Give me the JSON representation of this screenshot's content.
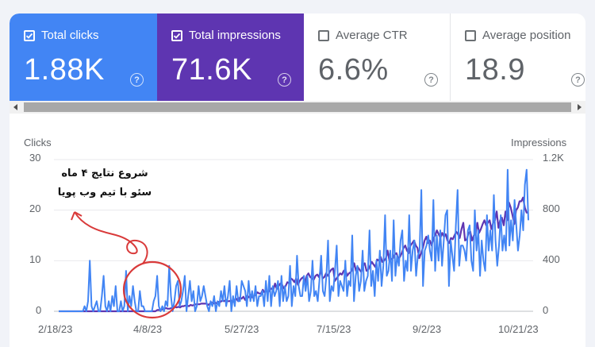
{
  "metrics": [
    {
      "label": "Total clicks",
      "value": "1.88K",
      "checked": true,
      "color": "#4285f4",
      "help": "?"
    },
    {
      "label": "Total impressions",
      "value": "71.6K",
      "checked": true,
      "color": "#5e35b1",
      "help": "?"
    },
    {
      "label": "Average CTR",
      "value": "6.6%",
      "checked": false,
      "help": "?"
    },
    {
      "label": "Average position",
      "value": "18.9",
      "checked": false,
      "help": "?"
    }
  ],
  "scrollbar": {
    "left_icon": "scroll-left-icon",
    "right_icon": "scroll-right-icon"
  },
  "annotation": {
    "line1": "شروع نتایج ۴ ماه",
    "line2": "سئو با تیم وب پویا",
    "arrow_color": "#d93a3a",
    "circle_color": "#d93a3a"
  },
  "chart_data": {
    "type": "line",
    "left_axis": {
      "label": "Clicks",
      "ticks": [
        "30",
        "20",
        "10",
        "0"
      ],
      "ylim": [
        0,
        30
      ]
    },
    "right_axis": {
      "label": "Impressions",
      "ticks": [
        "1.2K",
        "800",
        "400",
        "0"
      ],
      "ylim": [
        0,
        1200
      ]
    },
    "x_ticks": [
      "2/18/23",
      "4/8/23",
      "5/27/23",
      "7/15/23",
      "9/2/23",
      "10/21/23"
    ],
    "series": [
      {
        "name": "Clicks",
        "axis": "left",
        "color": "#4285f4",
        "values": [
          0,
          0,
          0,
          0,
          0,
          0,
          0,
          0,
          0,
          0,
          0,
          0,
          0,
          0,
          0,
          1,
          0,
          2,
          10,
          1,
          0,
          1,
          2,
          0,
          0,
          3,
          7,
          1,
          0,
          2,
          0,
          3,
          1,
          5,
          0,
          0,
          2,
          0,
          1,
          8,
          0,
          3,
          1,
          5,
          2,
          0,
          0,
          4,
          1,
          1,
          0,
          0,
          0,
          0,
          0,
          2,
          3,
          7,
          1,
          0,
          1,
          0,
          2,
          1,
          9,
          3,
          0,
          2,
          5,
          6,
          1,
          2,
          4,
          7,
          0,
          3,
          6,
          2,
          4,
          0,
          1,
          5,
          2,
          3,
          5,
          3,
          1,
          0,
          2,
          1,
          3,
          0,
          2,
          1,
          4,
          2,
          5,
          1,
          3,
          6,
          0,
          3,
          1,
          5,
          2,
          2,
          6,
          5,
          4,
          1,
          6,
          2,
          4,
          2,
          5,
          1,
          3,
          3,
          4,
          1,
          6,
          2,
          7,
          1,
          5,
          3,
          4,
          6,
          1,
          7,
          2,
          5,
          2,
          3,
          9,
          1,
          5,
          3,
          11,
          5,
          3,
          3,
          7,
          4,
          7,
          2,
          4,
          10,
          3,
          4,
          2,
          6,
          11,
          4,
          3,
          7,
          14,
          2,
          5,
          4,
          8,
          13,
          3,
          6,
          5,
          4,
          10,
          3,
          6,
          5,
          15,
          2,
          7,
          9,
          4,
          6,
          12,
          4,
          6,
          7,
          16,
          5,
          8,
          3,
          10,
          6,
          12,
          5,
          9,
          19,
          7,
          8,
          12,
          6,
          18,
          7,
          11,
          9,
          14,
          16,
          6,
          10,
          8,
          19,
          8,
          12,
          14,
          7,
          11,
          12,
          24,
          5,
          12,
          13,
          15,
          12,
          10,
          22,
          8,
          15,
          10,
          16,
          9,
          14,
          19,
          20,
          5,
          14,
          11,
          8,
          17,
          24,
          9,
          13,
          13,
          12,
          10,
          16,
          17,
          10,
          8,
          20,
          12,
          16,
          7,
          14,
          10,
          8,
          19,
          12,
          16,
          12,
          23,
          14,
          9,
          13,
          19,
          12,
          15,
          12,
          28,
          13,
          18,
          14,
          22,
          17,
          12,
          15,
          20,
          16,
          25,
          28,
          18
        ]
      },
      {
        "name": "Impressions",
        "axis": "right",
        "color": "#5e35b1",
        "values": [
          0,
          0,
          0,
          0,
          0,
          0,
          0,
          0,
          0,
          0,
          0,
          0,
          0,
          0,
          0,
          0,
          0,
          0,
          0,
          0,
          0,
          0,
          0,
          0,
          0,
          0,
          0,
          0,
          0,
          0,
          0,
          0,
          0,
          0,
          0,
          0,
          0,
          0,
          0,
          0,
          0,
          0,
          0,
          0,
          0,
          0,
          0,
          0,
          0,
          0,
          0,
          0,
          0,
          0,
          0,
          0,
          10,
          10,
          10,
          15,
          20,
          25,
          20,
          20,
          25,
          30,
          35,
          30,
          35,
          30,
          40,
          40,
          45,
          45,
          40,
          50,
          45,
          50,
          55,
          55,
          55,
          60,
          60,
          60,
          60,
          50,
          60,
          70,
          60,
          70,
          60,
          75,
          75,
          85,
          80,
          90,
          80,
          80,
          85,
          75,
          90,
          100,
          80,
          110,
          100,
          115,
          90,
          120,
          110,
          130,
          110,
          120,
          130,
          150,
          140,
          140,
          170,
          150,
          160,
          150,
          170,
          180,
          170,
          220,
          175,
          200,
          220,
          210,
          180,
          200,
          230,
          220,
          260,
          250,
          230,
          260,
          210,
          240,
          260,
          270,
          220,
          280,
          300,
          270,
          260,
          250,
          280,
          290,
          270,
          330,
          260,
          270,
          300,
          280,
          310,
          330,
          340,
          240,
          260,
          280,
          300,
          290,
          320,
          330,
          280,
          300,
          310,
          330,
          380,
          320,
          350,
          330,
          310,
          360,
          380,
          320,
          330,
          360,
          390,
          370,
          350,
          410,
          400,
          430,
          390,
          400,
          420,
          480,
          400,
          410,
          420,
          450,
          460,
          420,
          430,
          460,
          500,
          520,
          480,
          460,
          520,
          540,
          560,
          520,
          500,
          420,
          460,
          500,
          560,
          590,
          540,
          560,
          520,
          580,
          600,
          640,
          610,
          580,
          620,
          590,
          610,
          560,
          540,
          580,
          570,
          600,
          630,
          610,
          580,
          650,
          700,
          560,
          570,
          620,
          630,
          560,
          600,
          610,
          700,
          620,
          650,
          690,
          720,
          680,
          700,
          720,
          650,
          700,
          720,
          790,
          660,
          720,
          740,
          680,
          790,
          720,
          860,
          820,
          760,
          690,
          800,
          820,
          870,
          870,
          900,
          820,
          780,
          780
        ]
      }
    ],
    "grid": true,
    "legend": "none"
  }
}
